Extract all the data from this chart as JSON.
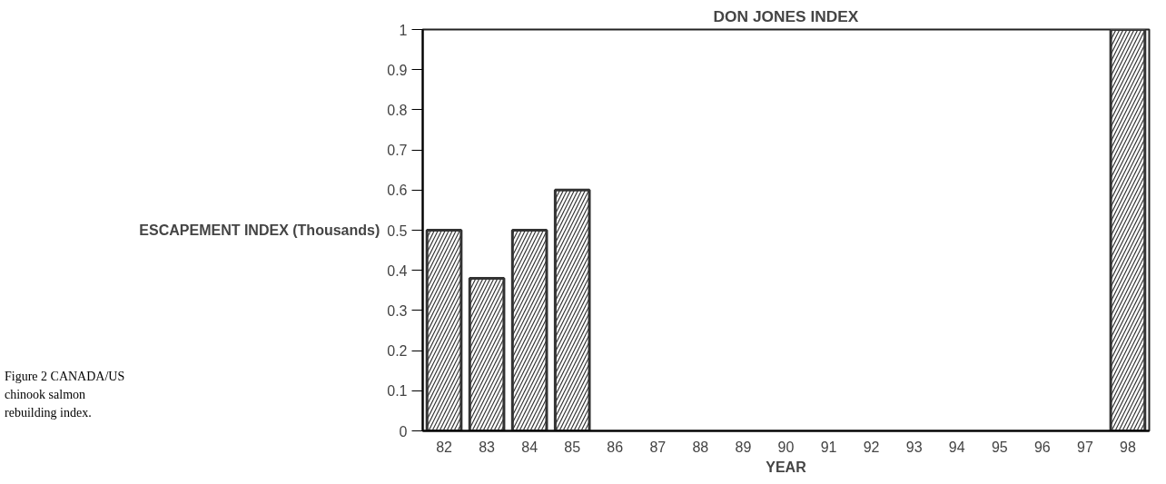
{
  "chart_data": {
    "type": "bar",
    "title": "DON JONES INDEX",
    "xlabel": "YEAR",
    "ylabel": "ESCAPEMENT INDEX (Thousands)",
    "categories": [
      "82",
      "83",
      "84",
      "85",
      "86",
      "87",
      "88",
      "89",
      "90",
      "91",
      "92",
      "93",
      "94",
      "95",
      "96",
      "97",
      "98"
    ],
    "series": [
      {
        "color": "#333333",
        "values": [
          0.5,
          0.38,
          0.5,
          0.6,
          null,
          null,
          null,
          null,
          null,
          null,
          null,
          null,
          null,
          null,
          null,
          null,
          1.0
        ]
      }
    ],
    "ylim": [
      0,
      1
    ],
    "yticks": [
      0,
      0.1,
      0.2,
      0.3,
      0.4,
      0.5,
      0.6,
      0.7,
      0.8,
      0.9,
      1
    ],
    "grid": false,
    "annotations": [
      "Figure 2 CANADA/US chinook salmon rebuilding index."
    ]
  }
}
